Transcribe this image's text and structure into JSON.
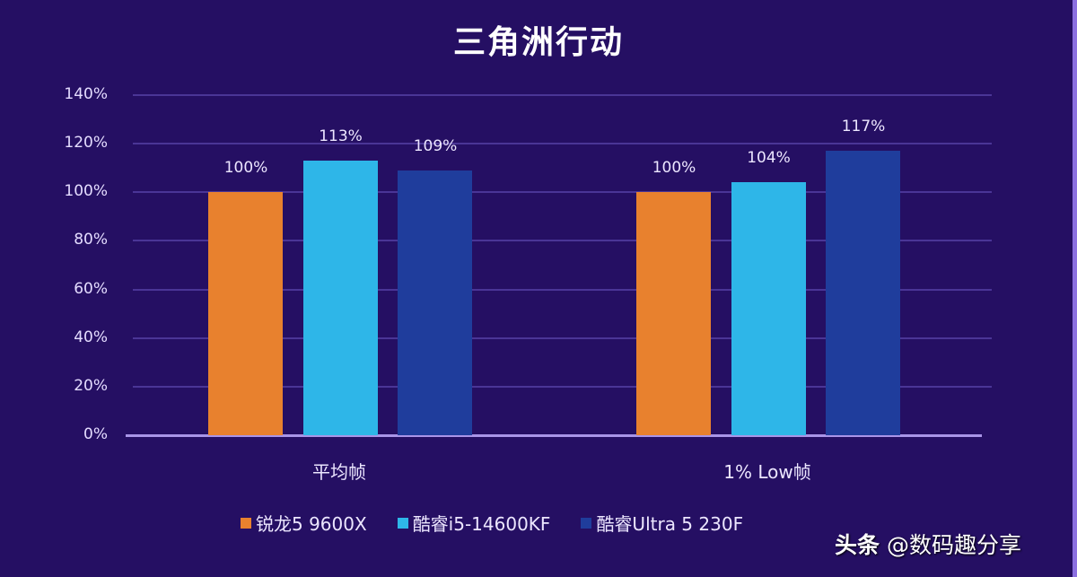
{
  "chart_data": {
    "type": "bar",
    "title": "三角洲行动",
    "categories": [
      "平均帧",
      "1% Low帧"
    ],
    "series": [
      {
        "name": "锐龙5 9600X",
        "color": "#e8812e",
        "values": [
          100,
          100
        ],
        "labels": [
          "100%",
          "100%"
        ]
      },
      {
        "name": "酷睿i5-14600KF",
        "color": "#2eb6e8",
        "values": [
          113,
          104
        ],
        "labels": [
          "113%",
          "104%"
        ]
      },
      {
        "name": "酷睿Ultra 5 230F",
        "color": "#1f3d9c",
        "values": [
          109,
          117
        ],
        "labels": [
          "109%",
          "117%"
        ]
      }
    ],
    "xlabel": "",
    "ylabel": "",
    "ylim": [
      0,
      140
    ],
    "yticks": [
      "0%",
      "20%",
      "40%",
      "60%",
      "80%",
      "100%",
      "120%",
      "140%"
    ],
    "grid": true,
    "legend_position": "bottom"
  },
  "watermark": {
    "prefix": "头条",
    "handle": "@数码趣分享"
  },
  "colors": {
    "background": "#250f63",
    "grid": "#4a3596",
    "axis": "#a995e8"
  }
}
